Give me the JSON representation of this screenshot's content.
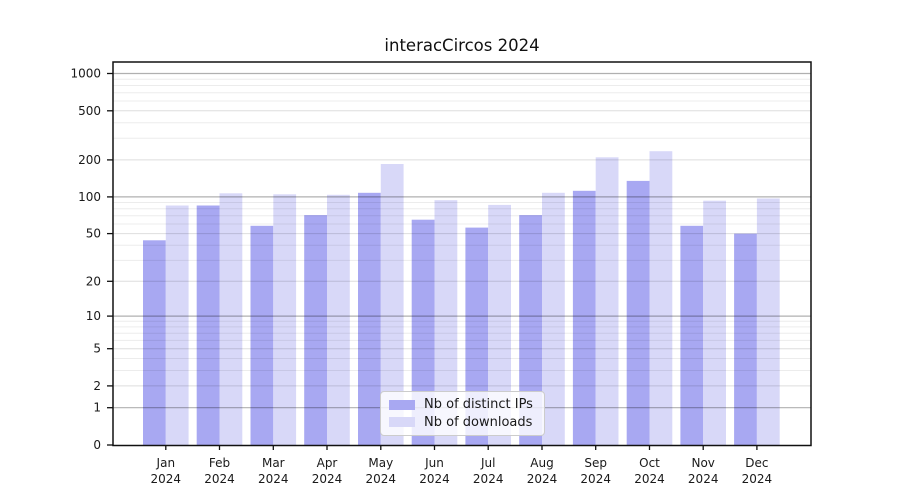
{
  "chart_data": {
    "type": "bar",
    "title": "interacCircos 2024",
    "categories": [
      "Jan",
      "Feb",
      "Mar",
      "Apr",
      "May",
      "Jun",
      "Jul",
      "Aug",
      "Sep",
      "Oct",
      "Nov",
      "Dec"
    ],
    "x_tick_year": "2024",
    "series": [
      {
        "name": "Nb of distinct IPs",
        "color": "#a8a8f2",
        "values": [
          44,
          85,
          58,
          71,
          108,
          65,
          56,
          71,
          112,
          135,
          58,
          50
        ]
      },
      {
        "name": "Nb of downloads",
        "color": "#d8d8f8",
        "values": [
          85,
          107,
          105,
          104,
          185,
          94,
          86,
          108,
          210,
          235,
          93,
          97
        ]
      }
    ],
    "yscale": "log1p",
    "yticks": [
      0,
      1,
      2,
      5,
      10,
      20,
      50,
      100,
      200,
      500,
      1000
    ],
    "minor_yticks": [
      3,
      4,
      6,
      7,
      8,
      9,
      30,
      40,
      60,
      70,
      80,
      90,
      300,
      400,
      600,
      700,
      800,
      900
    ],
    "decade_ticks": [
      1,
      10,
      100,
      1000
    ],
    "ylim": [
      0,
      1240
    ],
    "xlabel": "",
    "ylabel": "",
    "grid": "horizontal",
    "legend_position": "lower center inside"
  },
  "colors": {
    "background": "#ffffff",
    "frame": "#111111",
    "tick_text": "#1a1a1a",
    "grid_minor": "rgba(0,0,0,0.075)",
    "grid_major": "rgba(0,0,0,0.135)",
    "grid_decade": "rgba(0,0,0,0.31)"
  }
}
